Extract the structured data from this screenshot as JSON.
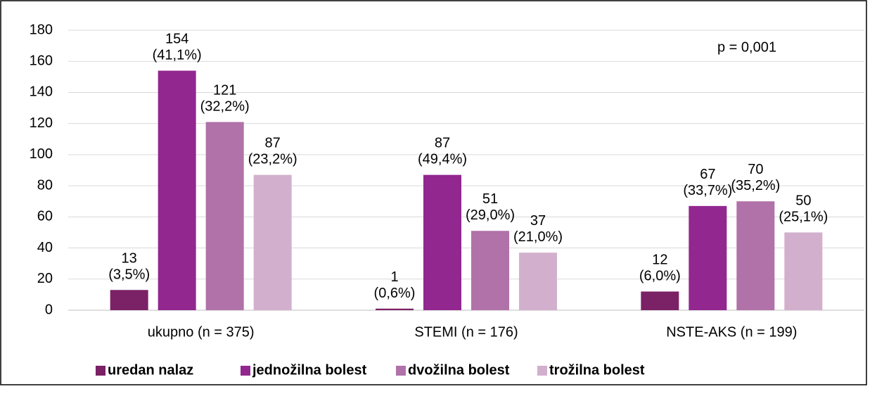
{
  "chart_data": {
    "type": "bar",
    "annotation": "p = 0,001",
    "categories": [
      "ukupno (n = 375)",
      "STEMI (n = 176)",
      "NSTE-AKS (n = 199)"
    ],
    "series": [
      {
        "name": "uredan nalaz",
        "color": "#7b2166",
        "values": [
          13,
          1,
          12
        ],
        "value_labels": [
          "13\n(3,5%)",
          "1\n(0,6%)",
          "12\n(6,0%)"
        ]
      },
      {
        "name": "jednožilna bolest",
        "color": "#92278f",
        "values": [
          154,
          87,
          67
        ],
        "value_labels": [
          "154\n(41,1%)",
          "87\n(49,4%)",
          "67\n(33,7%)"
        ]
      },
      {
        "name": "dvožilna bolest",
        "color": "#b072a8",
        "values": [
          121,
          51,
          70
        ],
        "value_labels": [
          "121\n(32,2%)",
          "51\n(29,0%)",
          "70\n(35,2%)"
        ]
      },
      {
        "name": "trožilna bolest",
        "color": "#d2b0cd",
        "values": [
          87,
          37,
          50
        ],
        "value_labels": [
          "87\n(23,2%)",
          "37\n(21,0%)",
          "50\n(25,1%)"
        ]
      }
    ],
    "ylim": [
      0,
      180
    ],
    "yticks": [
      0,
      20,
      40,
      60,
      80,
      100,
      120,
      140,
      160,
      180
    ],
    "grid": true,
    "legend": "bottom"
  }
}
